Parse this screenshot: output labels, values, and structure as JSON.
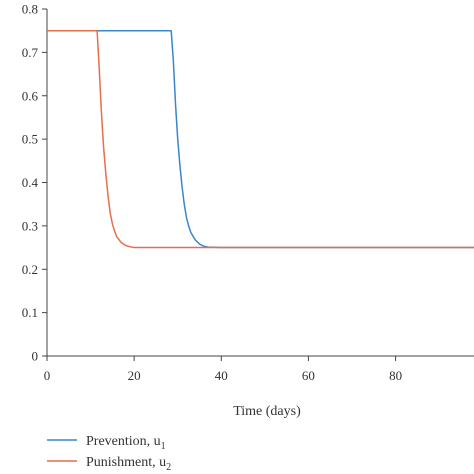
{
  "chart_data": {
    "type": "line",
    "title": "",
    "xlabel": "Time (days)",
    "ylabel": "",
    "xlim": [
      0,
      98
    ],
    "ylim": [
      0,
      0.8
    ],
    "xticks": [
      "0",
      "20",
      "40",
      "60",
      "80"
    ],
    "yticks": [
      "0",
      "0.1",
      "0.2",
      "0.3",
      "0.4",
      "0.5",
      "0.6",
      "0.7",
      "0.8"
    ],
    "grid": false,
    "legend_placement": "bottom-left",
    "series": [
      {
        "name": "Prevention, u",
        "name_sub": "1",
        "color": "#3a86c8",
        "x": [
          0,
          10,
          20,
          28.5,
          29.0,
          29.5,
          30.0,
          30.5,
          31.0,
          31.5,
          32.0,
          32.5,
          33.0,
          34.0,
          35.0,
          36.0,
          37.0,
          40,
          60,
          80,
          98
        ],
        "y": [
          0.75,
          0.75,
          0.75,
          0.75,
          0.68,
          0.58,
          0.5,
          0.44,
          0.39,
          0.35,
          0.32,
          0.3,
          0.285,
          0.268,
          0.258,
          0.253,
          0.251,
          0.25,
          0.25,
          0.25,
          0.25
        ]
      },
      {
        "name": "Punishment, u",
        "name_sub": "2",
        "color": "#e46f4a",
        "x": [
          0,
          5,
          11.5,
          12.0,
          12.5,
          13.0,
          13.5,
          14.0,
          14.5,
          15.0,
          15.5,
          16.0,
          17.0,
          18.0,
          19.0,
          20.0,
          30,
          40,
          60,
          80,
          98
        ],
        "y": [
          0.75,
          0.75,
          0.75,
          0.66,
          0.56,
          0.48,
          0.42,
          0.37,
          0.33,
          0.305,
          0.288,
          0.275,
          0.262,
          0.255,
          0.252,
          0.25,
          0.25,
          0.25,
          0.25,
          0.25,
          0.25
        ]
      }
    ]
  }
}
